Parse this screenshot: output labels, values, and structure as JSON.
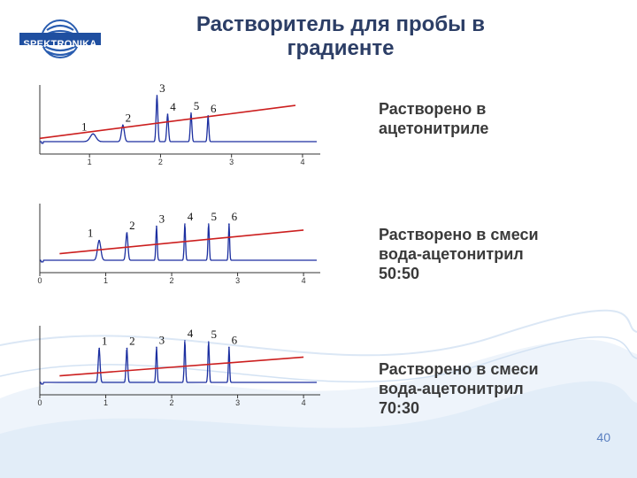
{
  "header": {
    "logo_text": "SPEKTRONIKA",
    "title_line1": "Растворитель для пробы в",
    "title_line2": "градиенте"
  },
  "page_number": "40",
  "colors": {
    "signal": "#1c2fa0",
    "gradient": "#cc1f1f",
    "axis": "#333333",
    "title": "#2c3e66"
  },
  "chart_data": [
    {
      "type": "line",
      "caption": [
        "Растворено в",
        "ацетонитриле"
      ],
      "x_ticks": [
        "1",
        "2",
        "3",
        "4"
      ],
      "xlim": [
        0.3,
        4.2
      ],
      "ylim": [
        0,
        1
      ],
      "peaks": [
        {
          "label": "1",
          "x": 1.05,
          "h": 0.14,
          "w": 0.04
        },
        {
          "label": "2",
          "x": 1.47,
          "h": 0.3,
          "w": 0.02
        },
        {
          "label": "3",
          "x": 1.95,
          "h": 0.84,
          "w": 0.012
        },
        {
          "label": "4",
          "x": 2.1,
          "h": 0.5,
          "w": 0.012
        },
        {
          "label": "5",
          "x": 2.43,
          "h": 0.52,
          "w": 0.011
        },
        {
          "label": "6",
          "x": 2.67,
          "h": 0.47,
          "w": 0.01
        }
      ],
      "gradient_line": {
        "x": [
          0.3,
          3.9
        ],
        "y": [
          0.06,
          0.66
        ]
      }
    },
    {
      "type": "line",
      "caption": [
        "Растворено в смеси",
        "вода-ацетонитрил",
        "50:50"
      ],
      "x_ticks": [
        "0",
        "1",
        "2",
        "3",
        "4"
      ],
      "xlim": [
        0,
        4.2
      ],
      "ylim": [
        0,
        1
      ],
      "peaks": [
        {
          "label": "1",
          "x": 0.9,
          "h": 0.36,
          "w": 0.025
        },
        {
          "label": "2",
          "x": 1.32,
          "h": 0.5,
          "w": 0.016
        },
        {
          "label": "3",
          "x": 1.77,
          "h": 0.62,
          "w": 0.01
        },
        {
          "label": "4",
          "x": 2.2,
          "h": 0.66,
          "w": 0.01
        },
        {
          "label": "5",
          "x": 2.56,
          "h": 0.66,
          "w": 0.01
        },
        {
          "label": "6",
          "x": 2.87,
          "h": 0.66,
          "w": 0.009
        }
      ],
      "gradient_line": {
        "x": [
          0.3,
          4.0
        ],
        "y": [
          0.12,
          0.55
        ]
      }
    },
    {
      "type": "line",
      "caption": [
        "Растворено в смеси",
        "вода-ацетонитрил",
        "70:30"
      ],
      "x_ticks": [
        "0",
        "1",
        "2",
        "3",
        "4"
      ],
      "xlim": [
        0,
        4.2
      ],
      "ylim": [
        0,
        1
      ],
      "peaks": [
        {
          "label": "1",
          "x": 0.9,
          "h": 0.62,
          "w": 0.014
        },
        {
          "label": "2",
          "x": 1.32,
          "h": 0.62,
          "w": 0.012
        },
        {
          "label": "3",
          "x": 1.77,
          "h": 0.64,
          "w": 0.01
        },
        {
          "label": "4",
          "x": 2.2,
          "h": 0.76,
          "w": 0.01
        },
        {
          "label": "5",
          "x": 2.56,
          "h": 0.74,
          "w": 0.01
        },
        {
          "label": "6",
          "x": 2.87,
          "h": 0.64,
          "w": 0.009
        }
      ],
      "gradient_line": {
        "x": [
          0.3,
          4.0
        ],
        "y": [
          0.12,
          0.46
        ]
      }
    }
  ]
}
